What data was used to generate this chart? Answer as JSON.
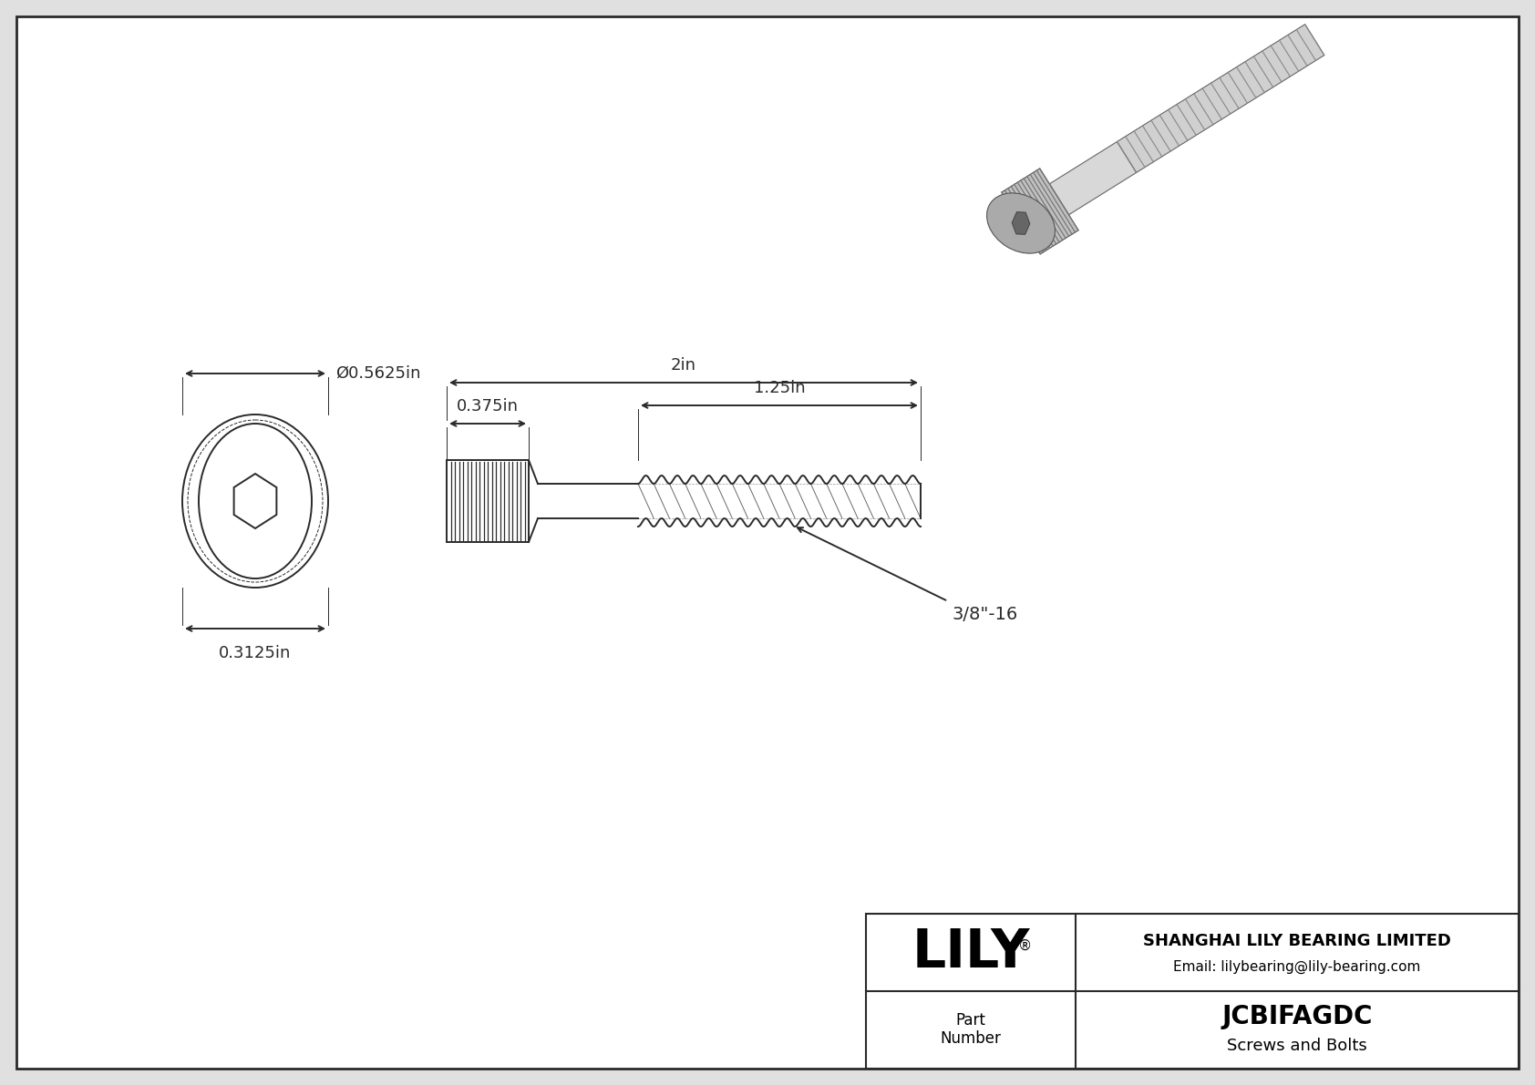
{
  "bg_color": "#e0e0e0",
  "drawing_bg": "#ffffff",
  "border_color": "#2a2a2a",
  "line_color": "#2a2a2a",
  "title": "JCBIFAGDC",
  "subtitle": "Screws and Bolts",
  "company": "SHANGHAI LILY BEARING LIMITED",
  "email": "Email: lilybearing@lily-bearing.com",
  "part_label": "Part\nNumber",
  "logo": "LILY",
  "dim_diameter": "Ø0.5625in",
  "dim_head_height": "0.3125in",
  "dim_head_width": "0.375in",
  "dim_total_length": "2in",
  "dim_thread_length": "1.25in",
  "thread_label": "3/8\"-16",
  "font_size_dims": 13,
  "font_size_logo": 42,
  "font_size_company": 13,
  "font_size_part": 20,
  "font_size_subtitle": 13,
  "fig_width": 16.84,
  "fig_height": 11.91,
  "fig_dpi": 100
}
